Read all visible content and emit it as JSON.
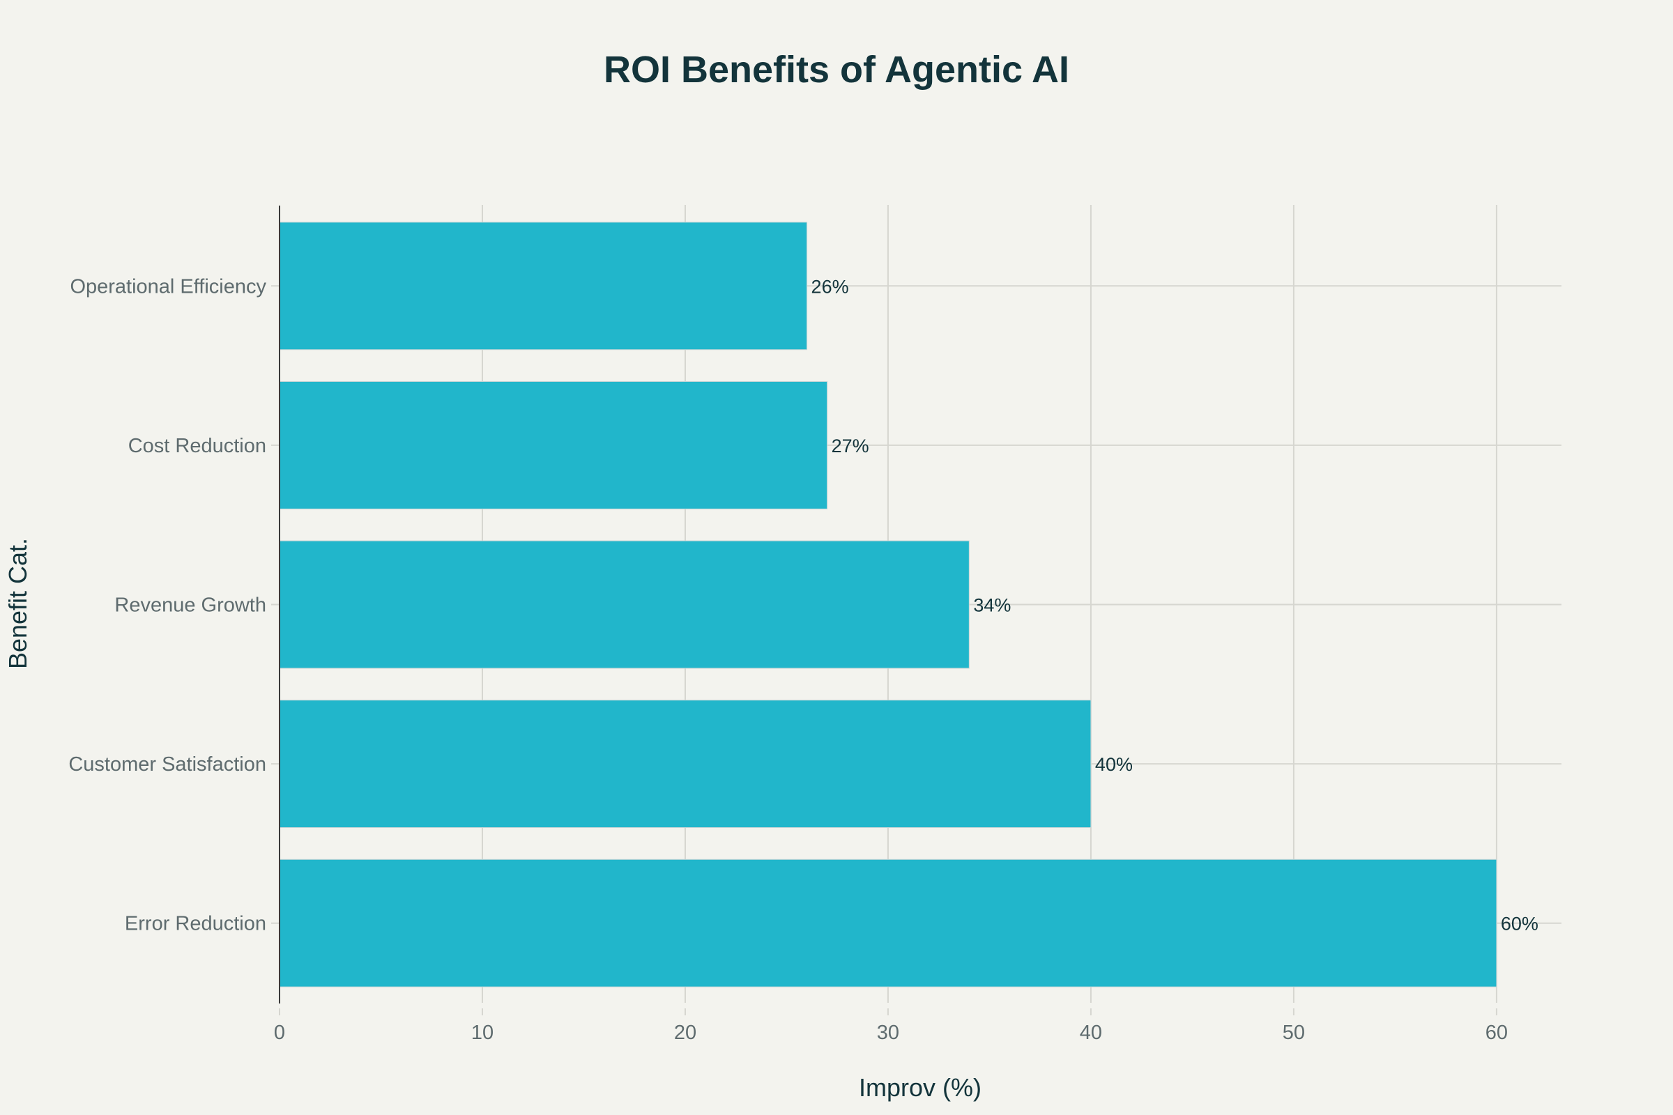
{
  "chart_data": {
    "type": "bar",
    "orientation": "horizontal",
    "title": "ROI Benefits of Agentic AI",
    "xlabel": "Improv (%)",
    "ylabel": "Benefit Cat.",
    "categories": [
      "Error Reduction",
      "Customer Satisfaction",
      "Revenue Growth",
      "Cost Reduction",
      "Operational Efficiency"
    ],
    "values": [
      60,
      40,
      34,
      27,
      26
    ],
    "data_labels": [
      "60%",
      "40%",
      "34%",
      "27%",
      "26%"
    ],
    "xlim": [
      0,
      63.2
    ],
    "xticks": [
      0,
      10,
      20,
      30,
      40,
      50,
      60
    ],
    "grid": true,
    "colors": {
      "bar": "#21b6cb",
      "background": "#f3f3ee",
      "title": "#13343b"
    }
  }
}
